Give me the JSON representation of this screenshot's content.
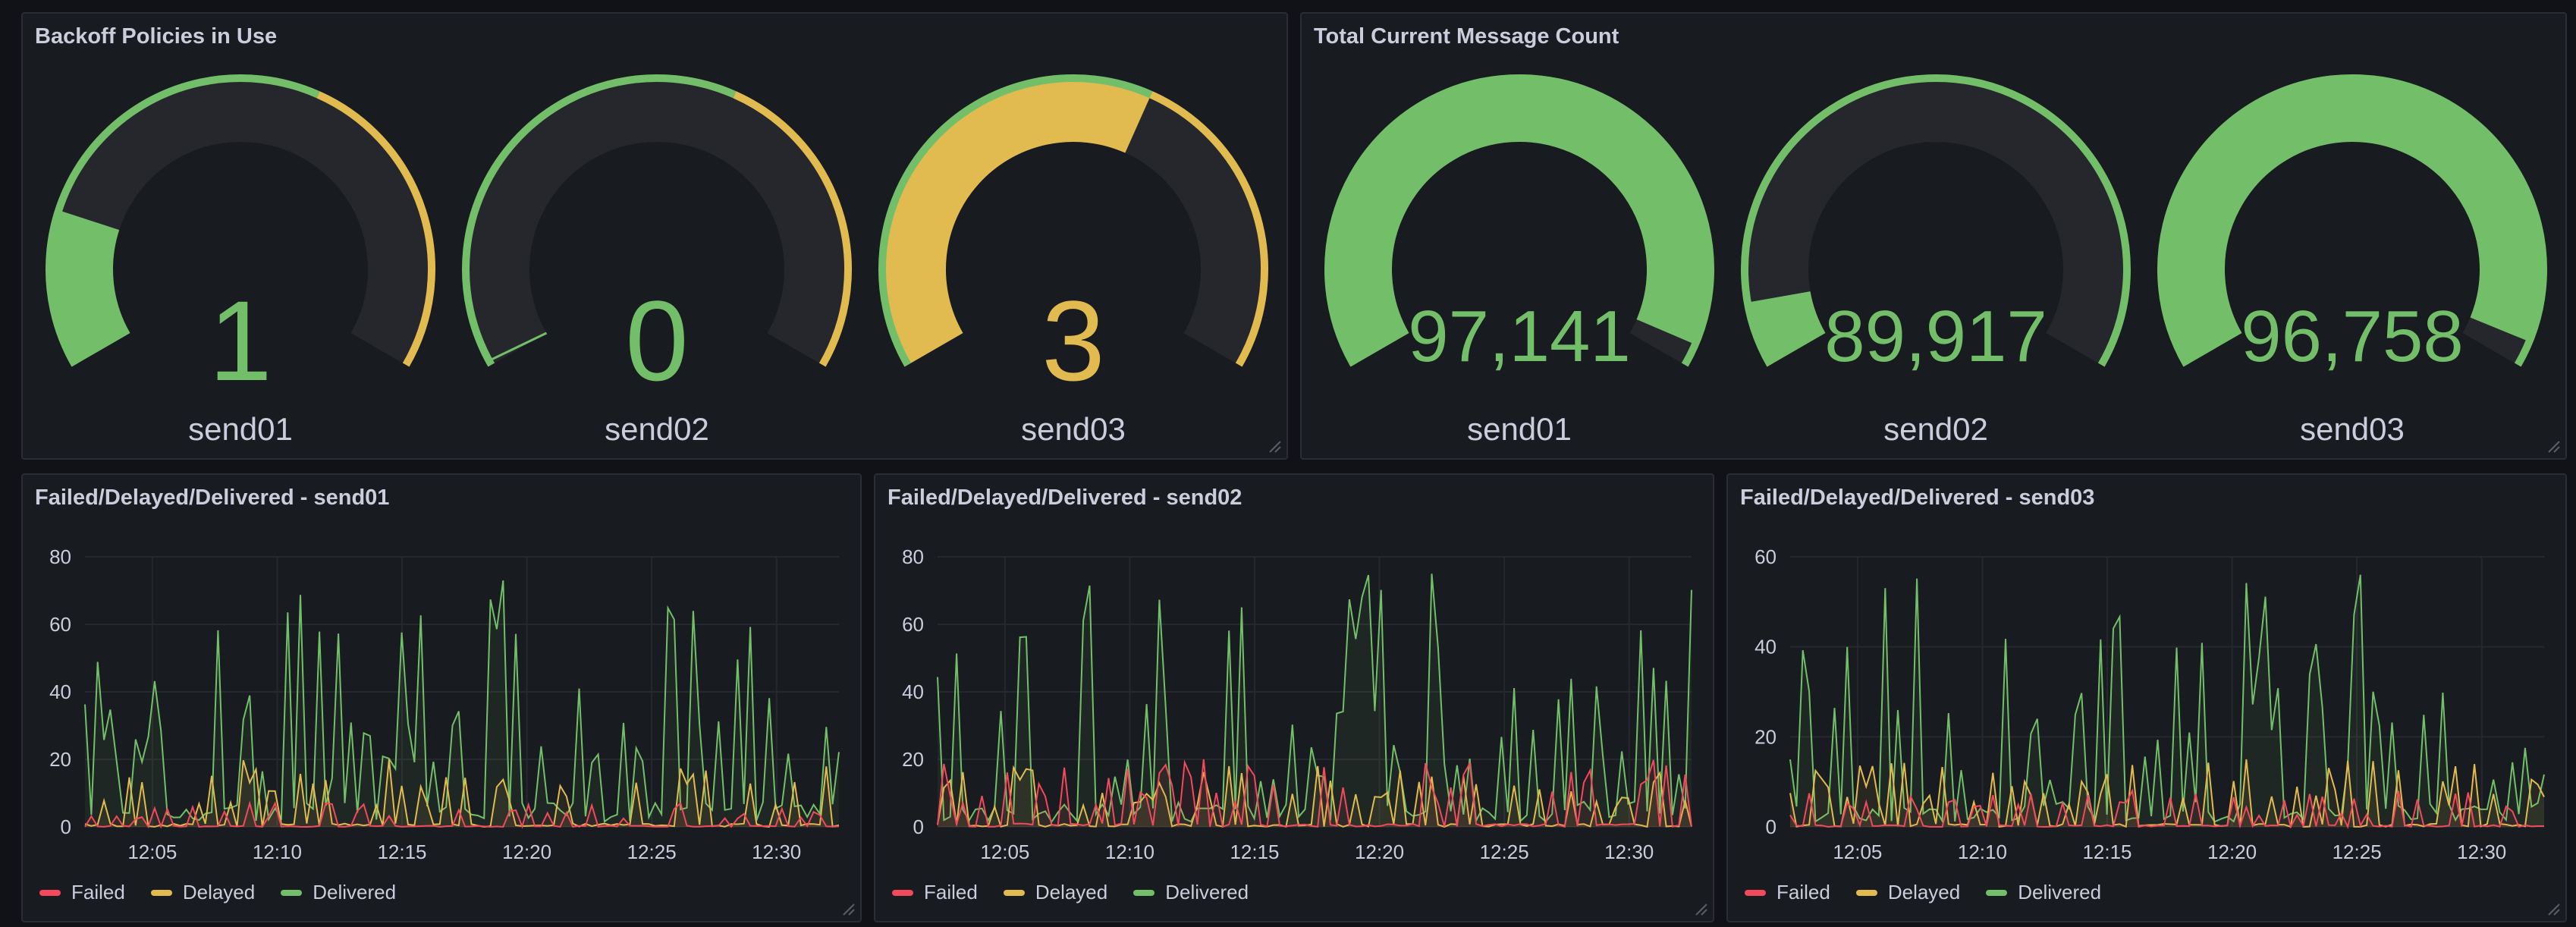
{
  "colors": {
    "green": "#73bf69",
    "yellow": "#e2bb50",
    "red": "#f2495c",
    "track": "#26272d",
    "panel_bg": "#181b1f",
    "text": "#ccccdc",
    "grid": "#26282e"
  },
  "backoff_panel": {
    "title": "Backoff Policies in Use",
    "gauges": [
      {
        "name": "send01",
        "value": 1,
        "display": "1",
        "min": 0,
        "max": 5,
        "color": "#73bf69",
        "threshold": 3
      },
      {
        "name": "send02",
        "value": 0,
        "display": "0",
        "min": 0,
        "max": 5,
        "color": "#73bf69",
        "threshold": 3
      },
      {
        "name": "send03",
        "value": 3,
        "display": "3",
        "min": 0,
        "max": 5,
        "color": "#e2bb50",
        "threshold": 3
      }
    ]
  },
  "message_panel": {
    "title": "Total Current Message Count",
    "gauges": [
      {
        "name": "send01",
        "value": 97141,
        "display": "97,141",
        "min": 0,
        "max": 100000,
        "color": "#73bf69"
      },
      {
        "name": "send02",
        "value": 89917,
        "display": "89,917",
        "min": 89000,
        "max": 100000,
        "color": "#73bf69"
      },
      {
        "name": "send03",
        "value": 96758,
        "display": "96,758",
        "min": 0,
        "max": 100000,
        "color": "#73bf69"
      }
    ]
  },
  "chart_data": [
    {
      "type": "line",
      "title": "Failed/Delayed/Delivered - send01",
      "ylim": [
        0,
        80
      ],
      "yticks": [
        0,
        20,
        40,
        60,
        80
      ],
      "xticks": [
        "12:05",
        "12:10",
        "12:15",
        "12:20",
        "12:25",
        "12:30"
      ],
      "x_start_minute": 2.3,
      "x_end_minute": 32.5,
      "points": 120,
      "seed": 11,
      "series": [
        {
          "name": "Failed",
          "color": "#f2495c",
          "peak": 7
        },
        {
          "name": "Delayed",
          "color": "#e2bb50",
          "peak": 20
        },
        {
          "name": "Delivered",
          "color": "#73bf69",
          "peak": 73
        }
      ]
    },
    {
      "type": "line",
      "title": "Failed/Delayed/Delivered - send02",
      "ylim": [
        0,
        80
      ],
      "yticks": [
        0,
        20,
        40,
        60,
        80
      ],
      "xticks": [
        "12:05",
        "12:10",
        "12:15",
        "12:20",
        "12:25",
        "12:30"
      ],
      "x_start_minute": 2.3,
      "x_end_minute": 32.5,
      "points": 120,
      "seed": 23,
      "series": [
        {
          "name": "Failed",
          "color": "#f2495c",
          "peak": 20
        },
        {
          "name": "Delayed",
          "color": "#e2bb50",
          "peak": 18
        },
        {
          "name": "Delivered",
          "color": "#73bf69",
          "peak": 75
        }
      ]
    },
    {
      "type": "line",
      "title": "Failed/Delayed/Delivered - send03",
      "ylim": [
        0,
        60
      ],
      "yticks": [
        0,
        20,
        40,
        60
      ],
      "xticks": [
        "12:05",
        "12:10",
        "12:15",
        "12:20",
        "12:25",
        "12:30"
      ],
      "x_start_minute": 2.3,
      "x_end_minute": 32.5,
      "points": 120,
      "seed": 37,
      "series": [
        {
          "name": "Failed",
          "color": "#f2495c",
          "peak": 8
        },
        {
          "name": "Delayed",
          "color": "#e2bb50",
          "peak": 15
        },
        {
          "name": "Delivered",
          "color": "#73bf69",
          "peak": 56
        }
      ]
    }
  ]
}
